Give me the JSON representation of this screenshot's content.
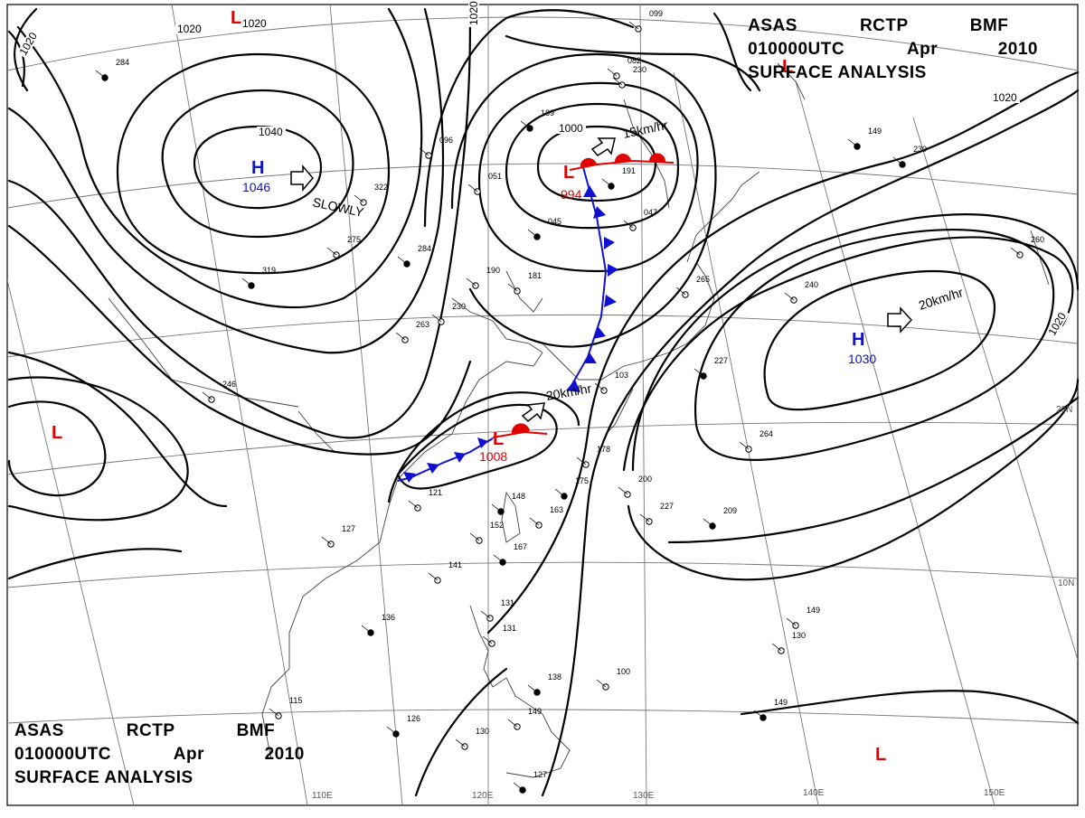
{
  "header": {
    "source": [
      "ASAS",
      "RCTP",
      "BMF"
    ],
    "valid_time": [
      "010000UTC",
      "Apr",
      "2010"
    ],
    "product": "SURFACE ANALYSIS"
  },
  "graticule": {
    "lon_labels": [
      "110E",
      "120E",
      "130E",
      "140E",
      "150E"
    ],
    "lat_labels": [
      "20N",
      "10N"
    ]
  },
  "isobar_labels": [
    "1020",
    "1020",
    "1020",
    "1020",
    "1040",
    "1000",
    "1020",
    "1020"
  ],
  "pressure_centers": [
    {
      "type": "H",
      "value": "1046",
      "color": "#1010d0"
    },
    {
      "type": "H",
      "value": "1030",
      "color": "#1010d0"
    },
    {
      "type": "L",
      "value": "994",
      "color": "#e00000"
    },
    {
      "type": "L",
      "value": "1008",
      "color": "#e00000"
    },
    {
      "type": "L",
      "value": "",
      "color": "#e00000"
    },
    {
      "type": "L",
      "value": "",
      "color": "#e00000"
    },
    {
      "type": "L",
      "value": "",
      "color": "#e00000"
    },
    {
      "type": "L",
      "value": "",
      "color": "#e00000"
    }
  ],
  "movements": [
    {
      "text": "SLOWLY"
    },
    {
      "text": "15km/hr"
    },
    {
      "text": "20km/hr"
    },
    {
      "text": "20km/hr"
    }
  ],
  "station_labels": [
    "284",
    "322",
    "275",
    "319",
    "230",
    "263",
    "189",
    "096",
    "051",
    "045",
    "181",
    "190",
    "284",
    "230",
    "047",
    "149",
    "265",
    "178",
    "175",
    "200",
    "227",
    "209",
    "264",
    "240",
    "230",
    "260",
    "121",
    "148",
    "163",
    "152",
    "167",
    "141",
    "127",
    "136",
    "131",
    "131",
    "138",
    "100",
    "115",
    "126",
    "130",
    "149",
    "127",
    "149",
    "130",
    "149",
    "082",
    "099",
    "191",
    "246",
    "103",
    "227"
  ]
}
